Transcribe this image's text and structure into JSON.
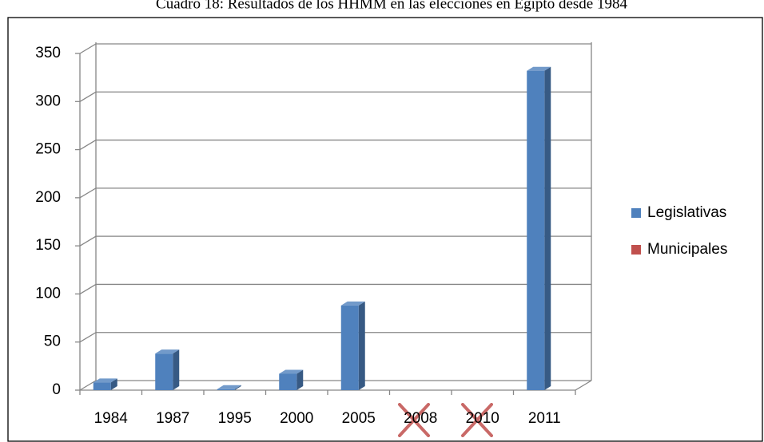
{
  "chart_data": {
    "type": "bar3d",
    "title": "Cuadro 18: Resultados de los HHMM en las elecciones en Egipto desde 1984",
    "categories": [
      "1984",
      "1987",
      "1995",
      "2000",
      "2005",
      "2008",
      "2010",
      "2011"
    ],
    "series": [
      {
        "name": "Legislativas",
        "color": "#4f81bd",
        "values": [
          8,
          38,
          1,
          17,
          88,
          null,
          null,
          332
        ]
      },
      {
        "name": "Municipales",
        "color": "#c0504d",
        "values": [
          null,
          null,
          null,
          null,
          null,
          null,
          null,
          null
        ]
      }
    ],
    "ylim": [
      0,
      350
    ],
    "yticks": [
      0,
      50,
      100,
      150,
      200,
      250,
      300,
      350
    ],
    "grid": true,
    "legend": "right"
  }
}
